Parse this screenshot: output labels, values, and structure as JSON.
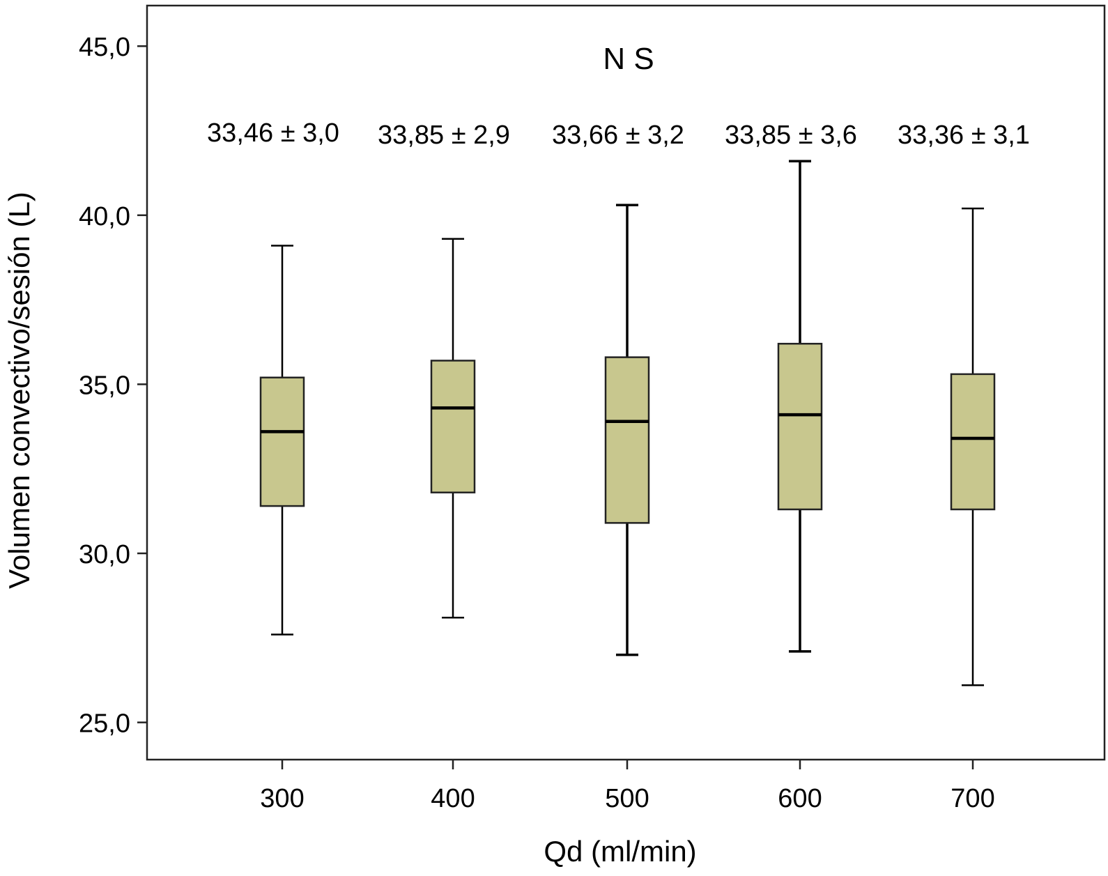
{
  "chart_data": {
    "type": "boxplot",
    "title": "N S",
    "xlabel": "Qd (ml/min)",
    "ylabel": "Volumen convectivo/sesión (L)",
    "ylim": [
      23.9,
      46.2
    ],
    "yticks": [
      25.0,
      30.0,
      35.0,
      40.0,
      45.0
    ],
    "ytick_labels": [
      "25,0",
      "30,0",
      "35,0",
      "40,0",
      "45,0"
    ],
    "categories": [
      "300",
      "400",
      "500",
      "600",
      "700"
    ],
    "boxes": [
      {
        "category": "300",
        "whisker_low": 27.6,
        "q1": 31.4,
        "median": 33.6,
        "q3": 35.2,
        "whisker_high": 39.1,
        "annotation": "33,46 ± 3,0"
      },
      {
        "category": "400",
        "whisker_low": 28.1,
        "q1": 31.8,
        "median": 34.3,
        "q3": 35.7,
        "whisker_high": 39.3,
        "annotation": "33,85 ± 2,9"
      },
      {
        "category": "500",
        "whisker_low": 27.0,
        "q1": 30.9,
        "median": 33.9,
        "q3": 35.8,
        "whisker_high": 40.3,
        "annotation": "33,66 ± 3,2"
      },
      {
        "category": "600",
        "whisker_low": 27.1,
        "q1": 31.3,
        "median": 34.1,
        "q3": 36.2,
        "whisker_high": 41.6,
        "annotation": "33,85 ± 3,6"
      },
      {
        "category": "700",
        "whisker_low": 26.1,
        "q1": 31.3,
        "median": 33.4,
        "q3": 35.3,
        "whisker_high": 40.2,
        "annotation": "33,36 ± 3,1"
      }
    ],
    "grid": false,
    "legend": "none",
    "colors": {
      "box_fill": "#c8c78e",
      "line": "#000000"
    }
  }
}
